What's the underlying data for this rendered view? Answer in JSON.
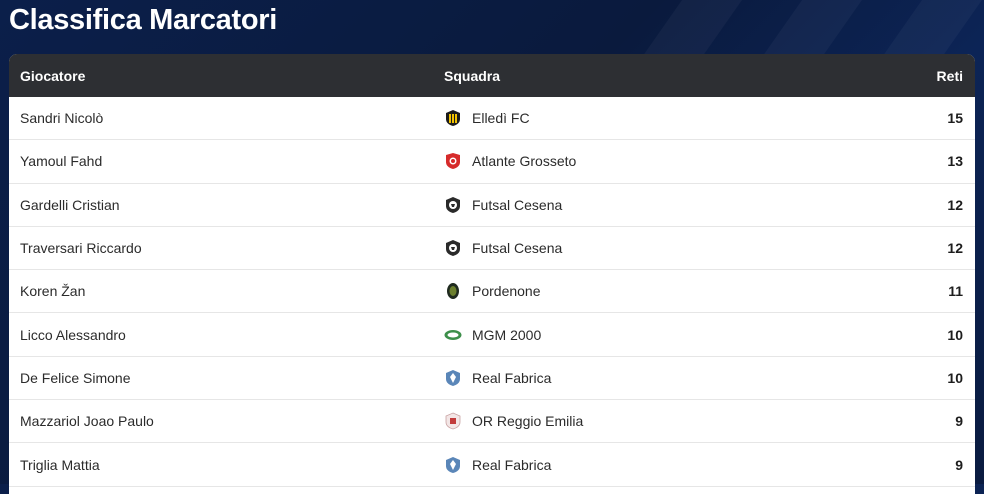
{
  "page": {
    "title": "Classifica Marcatori"
  },
  "table": {
    "headers": {
      "player": "Giocatore",
      "team": "Squadra",
      "goals": "Reti"
    },
    "rows": [
      {
        "player": "Sandri Nicolò",
        "team": "Elledì FC",
        "goals": "15",
        "logo_icon": "elledi-fc-logo-icon"
      },
      {
        "player": "Yamoul Fahd",
        "team": "Atlante Grosseto",
        "goals": "13",
        "logo_icon": "atlante-grosseto-logo-icon"
      },
      {
        "player": "Gardelli Cristian",
        "team": "Futsal Cesena",
        "goals": "12",
        "logo_icon": "futsal-cesena-logo-icon"
      },
      {
        "player": "Traversari Riccardo",
        "team": "Futsal Cesena",
        "goals": "12",
        "logo_icon": "futsal-cesena-logo-icon"
      },
      {
        "player": "Koren Žan",
        "team": "Pordenone",
        "goals": "11",
        "logo_icon": "pordenone-logo-icon"
      },
      {
        "player": "Licco Alessandro",
        "team": "MGM 2000",
        "goals": "10",
        "logo_icon": "mgm-2000-logo-icon"
      },
      {
        "player": "De Felice Simone",
        "team": "Real Fabrica",
        "goals": "10",
        "logo_icon": "real-fabrica-logo-icon"
      },
      {
        "player": "Mazzariol Joao Paulo",
        "team": "OR Reggio Emilia",
        "goals": "9",
        "logo_icon": "or-reggio-emilia-logo-icon"
      },
      {
        "player": "Triglia Mattia",
        "team": "Real Fabrica",
        "goals": "9",
        "logo_icon": "real-fabrica-logo-icon"
      }
    ]
  },
  "colors": {
    "background": "#0b1f4a",
    "header": "#2d2f33",
    "row": "#ffffff"
  }
}
